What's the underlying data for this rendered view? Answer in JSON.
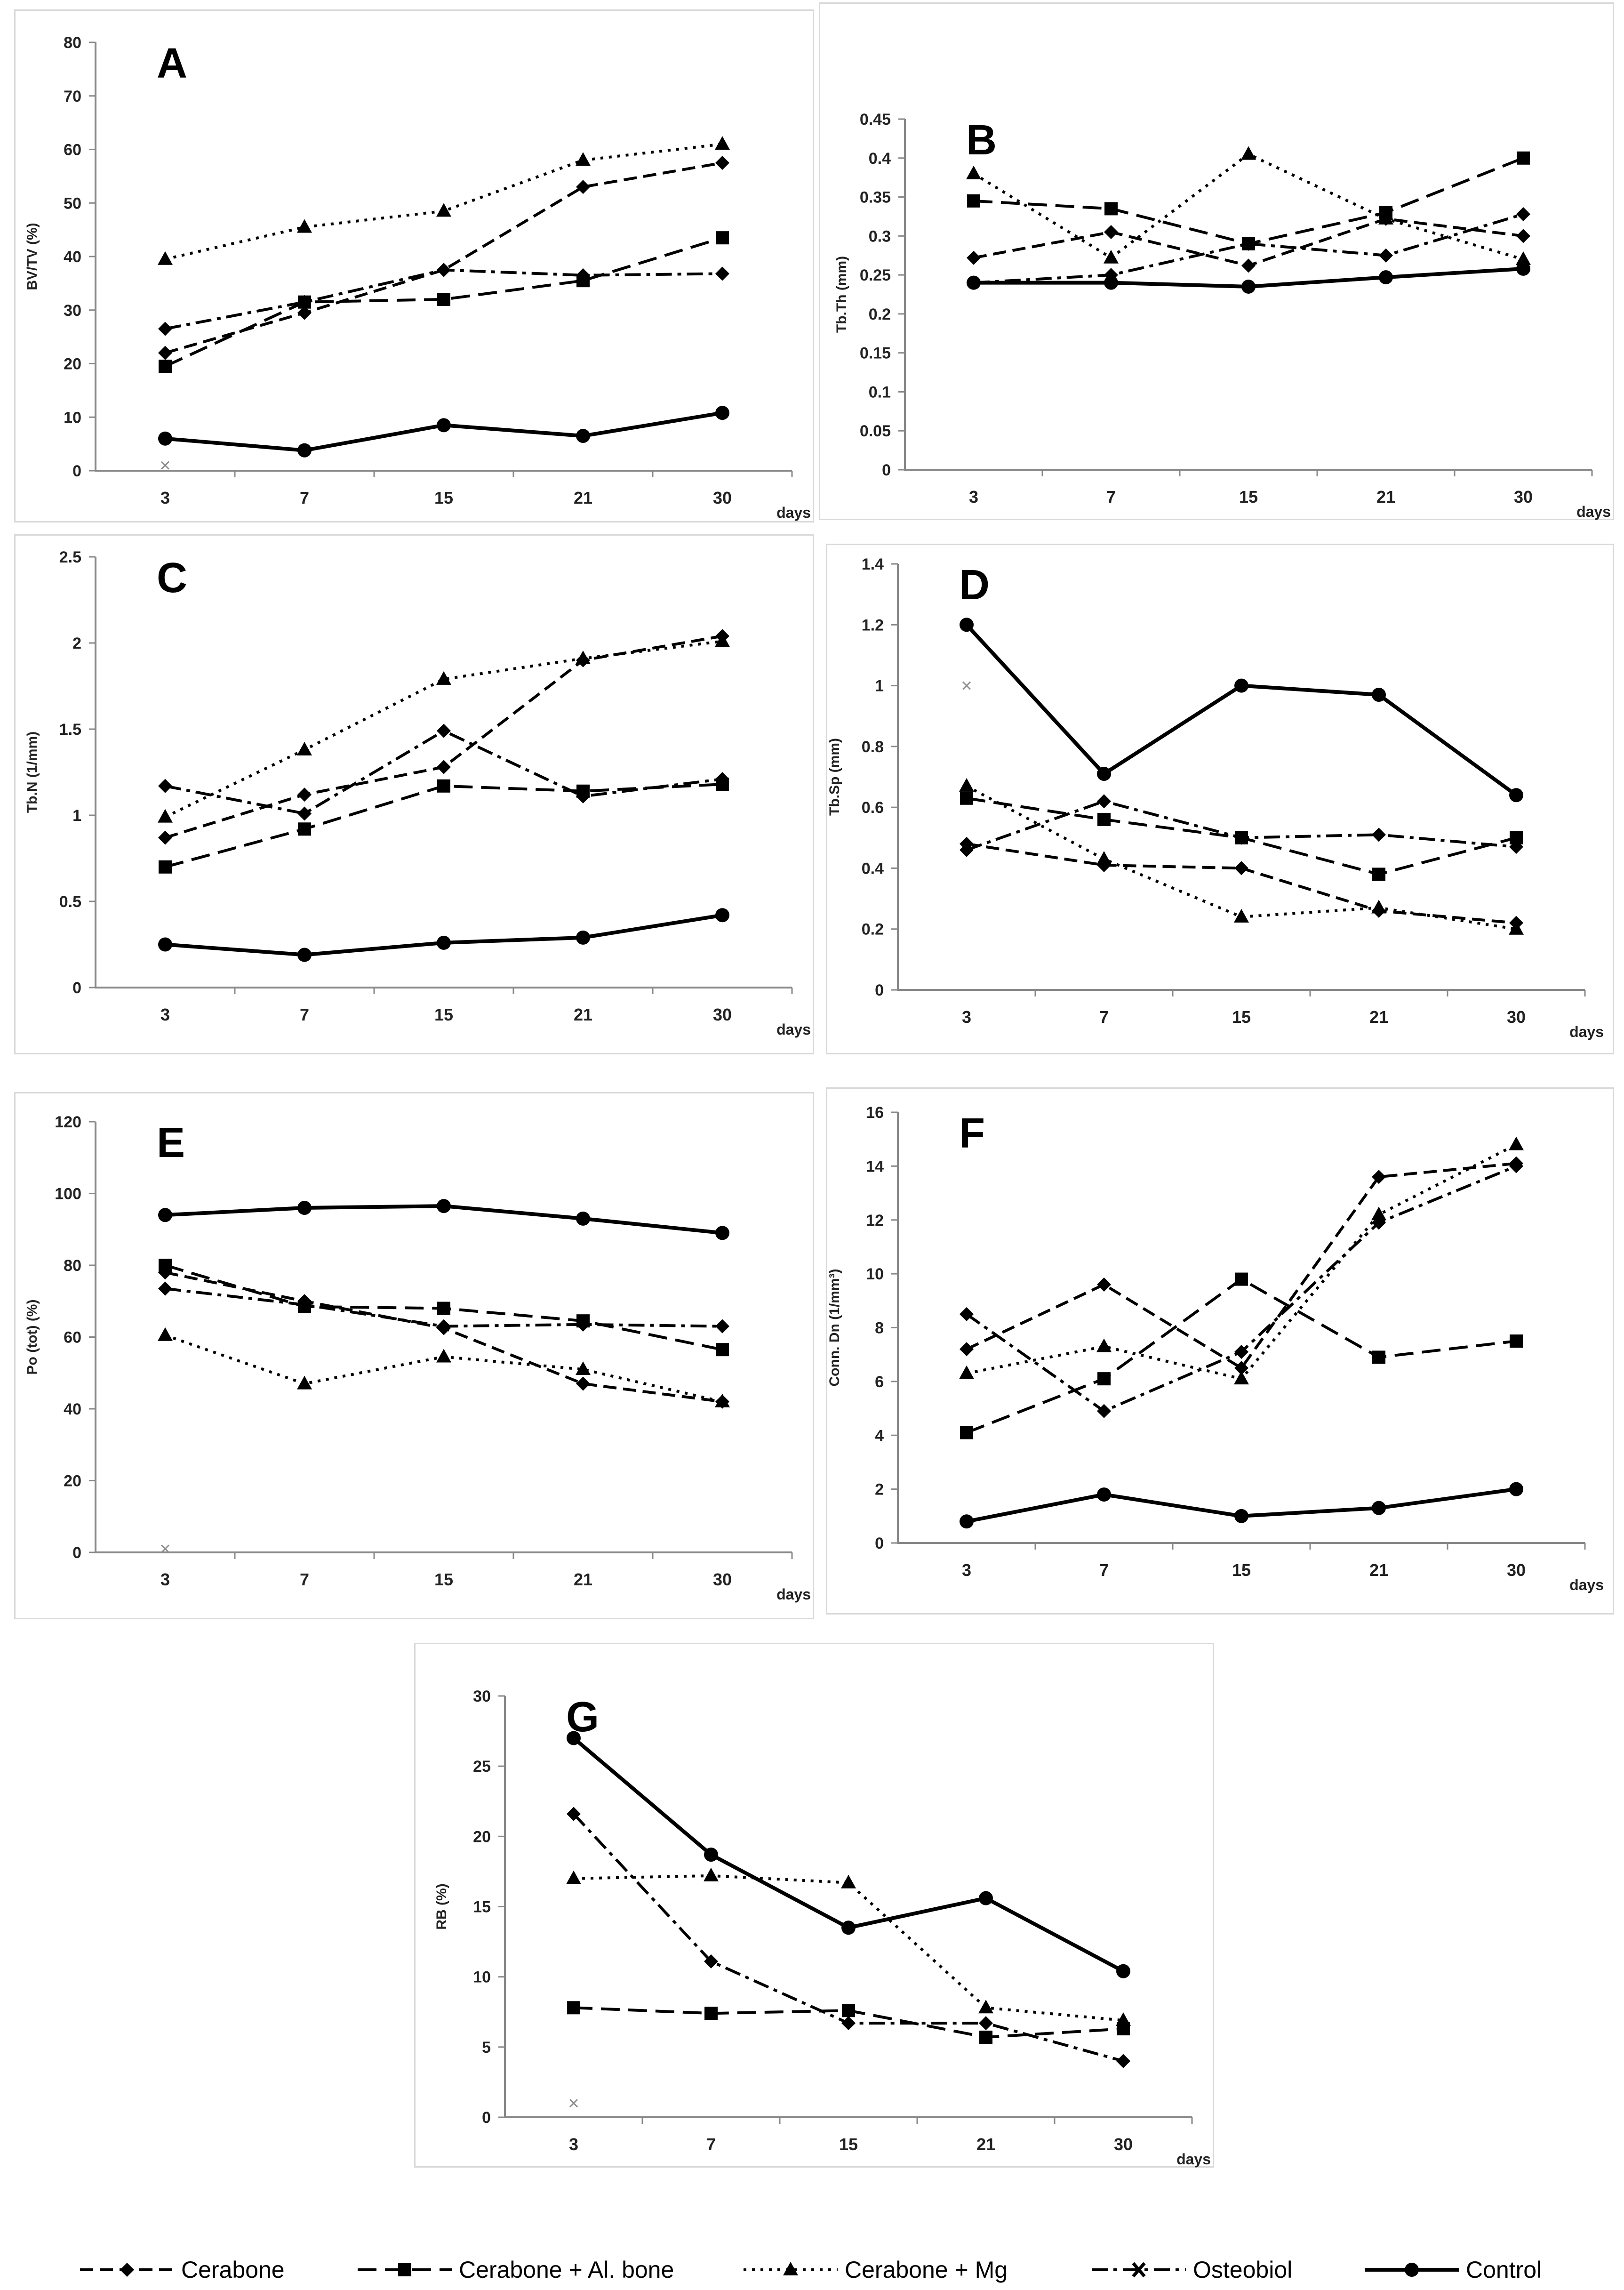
{
  "legend": [
    {
      "name": "Cerabone",
      "marker": "diamond",
      "dash": "dash"
    },
    {
      "name": "Cerabone + Al. bone",
      "marker": "square",
      "dash": "longdash"
    },
    {
      "name": "Cerabone + Mg",
      "marker": "triangle",
      "dash": "dot"
    },
    {
      "name": "Osteobiol",
      "marker": "cross",
      "dash": "dashdot"
    },
    {
      "name": "Control",
      "marker": "circle",
      "dash": "solid"
    }
  ],
  "chart_data": [
    {
      "panel": "A",
      "type": "line",
      "ylabel": "BV/TV (%)",
      "xlabel": "days",
      "categories": [
        "3",
        "7",
        "15",
        "21",
        "30"
      ],
      "ylim": [
        0,
        80
      ],
      "yticks": [
        "0",
        "10",
        "20",
        "30",
        "40",
        "50",
        "60",
        "70",
        "80"
      ],
      "series": [
        {
          "name": "Cerabone",
          "values": [
            22,
            29.5,
            37.5,
            53,
            57.5
          ]
        },
        {
          "name": "Cerabone + Al. bone",
          "values": [
            19.5,
            31.5,
            32,
            35.5,
            43.5
          ]
        },
        {
          "name": "Cerabone + Mg",
          "values": [
            39.5,
            45.5,
            48.5,
            58,
            61
          ]
        },
        {
          "name": "Osteobiol",
          "values": [
            26.5,
            31.5,
            37.5,
            36.5,
            36.8
          ],
          "first_marker_value": 1
        },
        {
          "name": "Control",
          "values": [
            6,
            3.8,
            8.5,
            6.5,
            10.8
          ]
        }
      ]
    },
    {
      "panel": "B",
      "type": "line",
      "ylabel": "Tb.Th (mm)",
      "xlabel": "days",
      "categories": [
        "3",
        "7",
        "15",
        "21",
        "30"
      ],
      "ylim": [
        0,
        0.45
      ],
      "yticks": [
        "0",
        "0.05",
        "0.1",
        "0.15",
        "0.2",
        "0.25",
        "0.3",
        "0.35",
        "0.4",
        "0.45"
      ],
      "series": [
        {
          "name": "Cerabone",
          "values": [
            0.272,
            0.305,
            0.262,
            0.322,
            0.3
          ]
        },
        {
          "name": "Cerabone + Al. bone",
          "values": [
            0.345,
            0.335,
            0.29,
            0.33,
            0.4
          ]
        },
        {
          "name": "Cerabone + Mg",
          "values": [
            0.38,
            0.272,
            0.405,
            0.322,
            0.27
          ]
        },
        {
          "name": "Osteobiol",
          "values": [
            0.24,
            0.25,
            0.29,
            0.275,
            0.328
          ]
        },
        {
          "name": "Control",
          "values": [
            0.24,
            0.24,
            0.235,
            0.247,
            0.258
          ]
        }
      ]
    },
    {
      "panel": "C",
      "type": "line",
      "ylabel": "Tb.N (1/mm)",
      "xlabel": "days",
      "categories": [
        "3",
        "7",
        "15",
        "21",
        "30"
      ],
      "ylim": [
        0,
        2.5
      ],
      "yticks": [
        "0",
        "0.5",
        "1",
        "1.5",
        "2",
        "2.5"
      ],
      "series": [
        {
          "name": "Cerabone",
          "values": [
            0.87,
            1.12,
            1.28,
            1.9,
            2.04
          ]
        },
        {
          "name": "Cerabone + Al. bone",
          "values": [
            0.7,
            0.92,
            1.17,
            1.14,
            1.18
          ]
        },
        {
          "name": "Cerabone + Mg",
          "values": [
            0.99,
            1.38,
            1.79,
            1.91,
            2.01
          ]
        },
        {
          "name": "Osteobiol",
          "values": [
            1.17,
            1.01,
            1.49,
            1.11,
            1.21
          ]
        },
        {
          "name": "Control",
          "values": [
            0.25,
            0.19,
            0.26,
            0.29,
            0.42
          ]
        }
      ]
    },
    {
      "panel": "D",
      "type": "line",
      "ylabel": "Tb.Sp (mm)",
      "xlabel": "days",
      "categories": [
        "3",
        "7",
        "15",
        "21",
        "30"
      ],
      "ylim": [
        0,
        1.4
      ],
      "yticks": [
        "0",
        "0.2",
        "0.4",
        "0.6",
        "0.8",
        "1",
        "1.2",
        "1.4"
      ],
      "series": [
        {
          "name": "Cerabone",
          "values": [
            0.48,
            0.41,
            0.4,
            0.26,
            0.22
          ]
        },
        {
          "name": "Cerabone + Al. bone",
          "values": [
            0.63,
            0.56,
            0.5,
            0.38,
            0.5
          ]
        },
        {
          "name": "Cerabone + Mg",
          "values": [
            0.67,
            0.43,
            0.24,
            0.27,
            0.2
          ]
        },
        {
          "name": "Osteobiol",
          "values": [
            0.46,
            0.62,
            0.5,
            0.51,
            0.47
          ],
          "first_marker_value": 1
        },
        {
          "name": "Control",
          "values": [
            1.2,
            0.71,
            1.0,
            0.97,
            0.64
          ]
        }
      ]
    },
    {
      "panel": "E",
      "type": "line",
      "ylabel": "Po (tot) (%)",
      "xlabel": "days",
      "categories": [
        "3",
        "7",
        "15",
        "21",
        "30"
      ],
      "ylim": [
        0,
        120
      ],
      "yticks": [
        "0",
        "20",
        "40",
        "60",
        "80",
        "100",
        "120"
      ],
      "series": [
        {
          "name": "Cerabone",
          "values": [
            78,
            70,
            62.5,
            47,
            42
          ]
        },
        {
          "name": "Cerabone + Al. bone",
          "values": [
            80,
            68.5,
            68,
            64.5,
            56.5
          ]
        },
        {
          "name": "Cerabone + Mg",
          "values": [
            60.5,
            47,
            54.5,
            51,
            42
          ]
        },
        {
          "name": "Osteobiol",
          "values": [
            73.5,
            69,
            63,
            63.5,
            63
          ],
          "first_marker_value": 1
        },
        {
          "name": "Control",
          "values": [
            94,
            96,
            96.5,
            93,
            89
          ]
        }
      ]
    },
    {
      "panel": "F",
      "type": "line",
      "ylabel": "Conn. Dn (1/mm³)",
      "xlabel": "days",
      "categories": [
        "3",
        "7",
        "15",
        "21",
        "30"
      ],
      "ylim": [
        0,
        16
      ],
      "yticks": [
        "0",
        "2",
        "4",
        "6",
        "8",
        "10",
        "12",
        "14",
        "16"
      ],
      "series": [
        {
          "name": "Cerabone",
          "values": [
            7.2,
            9.6,
            6.5,
            13.6,
            14.1
          ]
        },
        {
          "name": "Cerabone + Al. bone",
          "values": [
            4.1,
            6.1,
            9.8,
            6.9,
            7.5
          ]
        },
        {
          "name": "Cerabone + Mg",
          "values": [
            6.3,
            7.3,
            6.1,
            12.2,
            14.8
          ]
        },
        {
          "name": "Osteobiol",
          "values": [
            8.5,
            4.9,
            7.1,
            11.9,
            14.0
          ]
        },
        {
          "name": "Control",
          "values": [
            0.8,
            1.8,
            1.0,
            1.3,
            2.0
          ]
        }
      ]
    },
    {
      "panel": "G",
      "type": "line",
      "ylabel": "RB (%)",
      "xlabel": "days",
      "categories": [
        "3",
        "7",
        "15",
        "21",
        "30"
      ],
      "ylim": [
        0,
        30
      ],
      "yticks": [
        "0",
        "5",
        "10",
        "15",
        "20",
        "25",
        "30"
      ],
      "series": [
        {
          "name": "Cerabone",
          "values": [
            27,
            18.7,
            13.5,
            15.6,
            10.4
          ]
        },
        {
          "name": "Cerabone + Al. bone",
          "values": [
            7.8,
            7.4,
            7.6,
            5.7,
            6.3
          ]
        },
        {
          "name": "Cerabone + Mg",
          "values": [
            17,
            17.2,
            16.7,
            7.8,
            6.9
          ]
        },
        {
          "name": "Osteobiol",
          "values": [
            21.6,
            11.1,
            6.7,
            6.7,
            4.0
          ],
          "first_marker_value": 1
        },
        {
          "name": "Control",
          "values": [
            27,
            18.7,
            13.5,
            15.6,
            10.4
          ]
        }
      ]
    }
  ]
}
